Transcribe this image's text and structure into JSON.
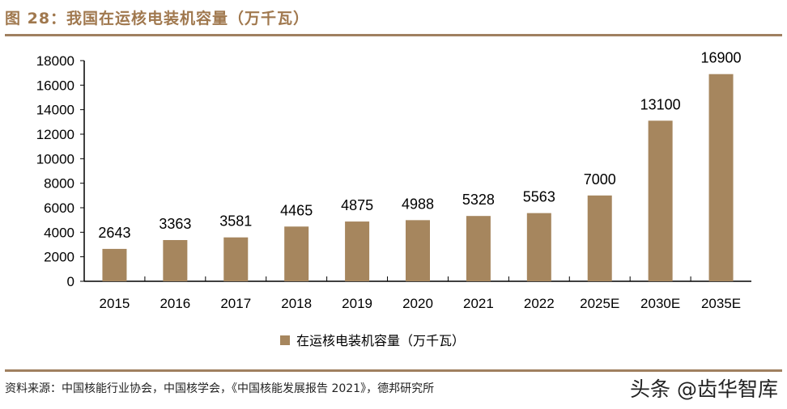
{
  "title": "图 28：我国在运核电装机容量（万千瓦）",
  "source": "资料来源：中国核能行业协会，中国核学会，《中国核能发展报告 2021》，德邦研究所",
  "watermark": "头条 @齿华智库",
  "colors": {
    "bar": "#a6865e",
    "title": "#a0784e"
  },
  "chart_data": {
    "type": "bar",
    "title": "我国在运核电装机容量（万千瓦）",
    "categories": [
      "2015",
      "2016",
      "2017",
      "2018",
      "2019",
      "2020",
      "2021",
      "2022",
      "2025E",
      "2030E",
      "2035E"
    ],
    "series": [
      {
        "name": "在运核电装机容量（万千瓦）",
        "values": [
          2643,
          3363,
          3581,
          4465,
          4875,
          4988,
          5328,
          5563,
          7000,
          13100,
          16900
        ]
      }
    ],
    "yticks": [
      0,
      2000,
      4000,
      6000,
      8000,
      10000,
      12000,
      14000,
      16000,
      18000
    ],
    "ylim": [
      0,
      18000
    ],
    "legend": "bottom-center",
    "grid": false
  }
}
